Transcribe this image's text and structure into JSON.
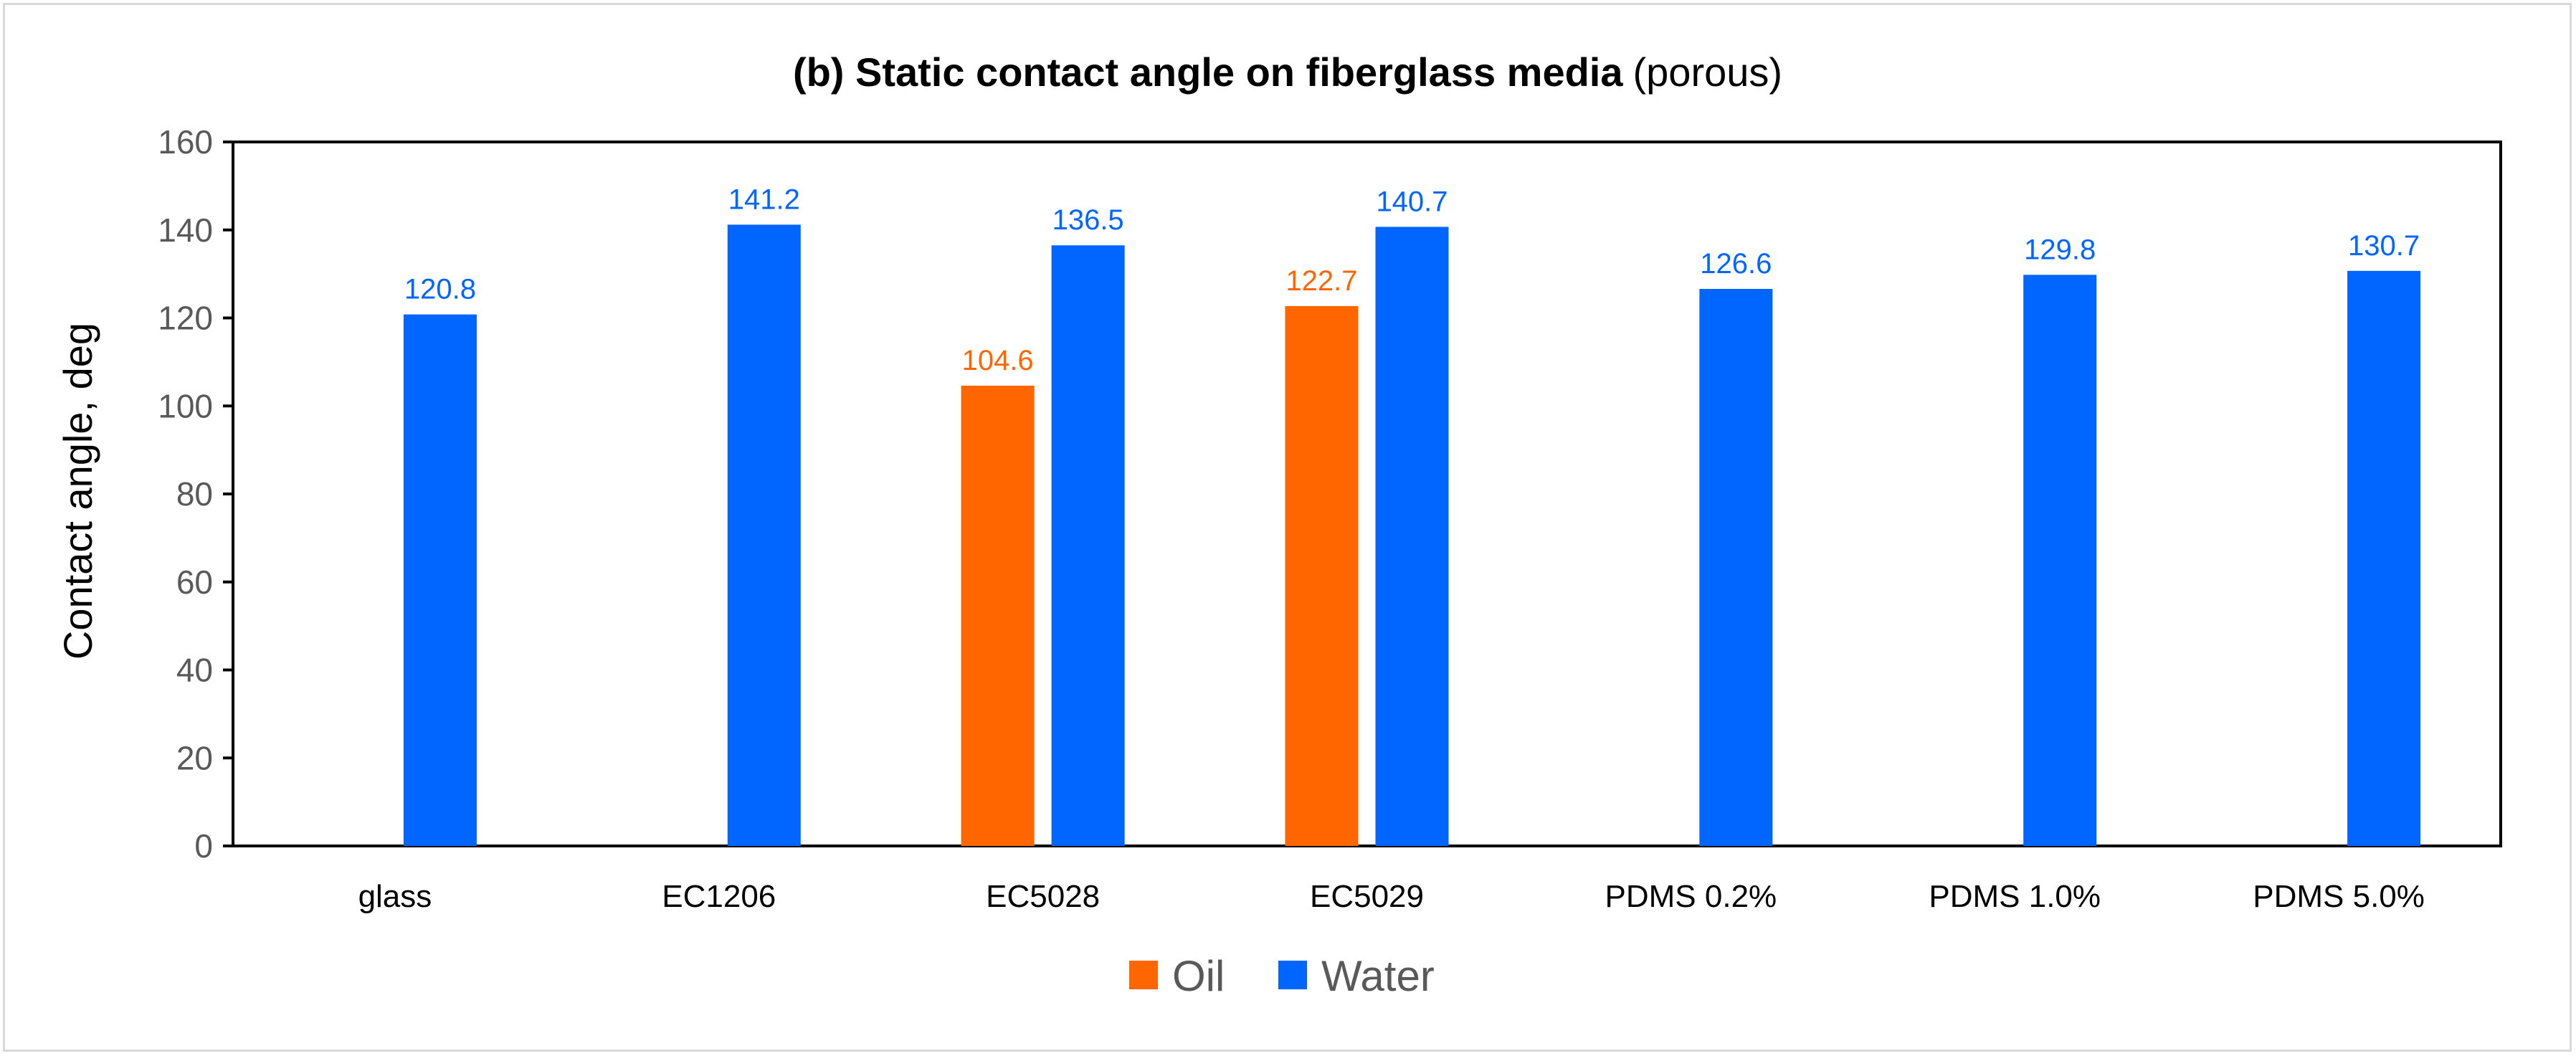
{
  "chart_data": {
    "type": "bar",
    "title_bold": "(b) Static contact angle on fiberglass media",
    "title_rest": "(porous)",
    "xlabel": "",
    "ylabel": "Contact angle, deg",
    "ylim": [
      0,
      160
    ],
    "yticks": [
      0,
      20,
      40,
      60,
      80,
      100,
      120,
      140,
      160
    ],
    "grid": false,
    "legend_position": "bottom-center",
    "categories": [
      "glass",
      "EC1206",
      "EC5028",
      "EC5029",
      "PDMS 0.2%",
      "PDMS 1.0%",
      "PDMS 5.0%"
    ],
    "series": [
      {
        "name": "Oil",
        "color": "#ff6600",
        "values": [
          null,
          null,
          104.6,
          122.7,
          null,
          null,
          null
        ],
        "labels": [
          "",
          "",
          "104.6",
          "122.7",
          "",
          "",
          ""
        ]
      },
      {
        "name": "Water",
        "color": "#0066ff",
        "values": [
          120.8,
          141.2,
          136.5,
          140.7,
          126.6,
          129.8,
          130.7
        ],
        "labels": [
          "120.8",
          "141.2",
          "136.5",
          "140.7",
          "126.6",
          "129.8",
          "130.7"
        ]
      }
    ]
  }
}
